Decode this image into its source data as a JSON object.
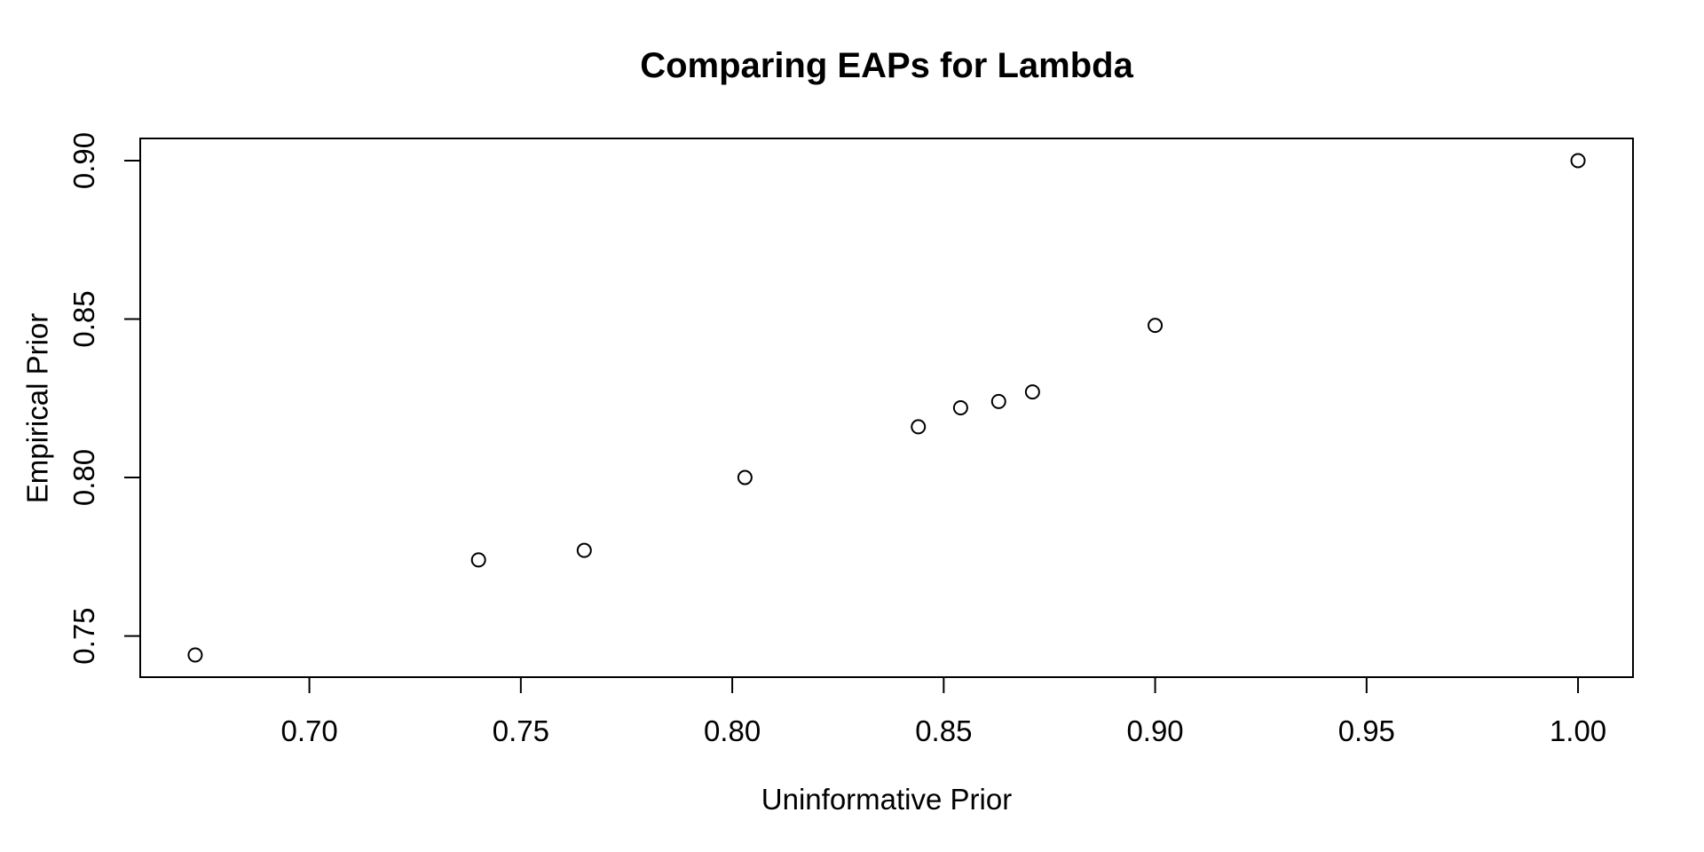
{
  "chart_data": {
    "type": "scatter",
    "title": "Comparing EAPs for Lambda",
    "xlabel": "Uninformative Prior",
    "ylabel": "Empirical Prior",
    "xlim": [
      0.66,
      1.013
    ],
    "ylim": [
      0.737,
      0.907
    ],
    "x_ticks": [
      {
        "value": 0.7,
        "label": "0.70"
      },
      {
        "value": 0.75,
        "label": "0.75"
      },
      {
        "value": 0.8,
        "label": "0.80"
      },
      {
        "value": 0.85,
        "label": "0.85"
      },
      {
        "value": 0.9,
        "label": "0.90"
      },
      {
        "value": 0.95,
        "label": "0.95"
      },
      {
        "value": 1.0,
        "label": "1.00"
      }
    ],
    "y_ticks": [
      {
        "value": 0.75,
        "label": "0.75"
      },
      {
        "value": 0.8,
        "label": "0.80"
      },
      {
        "value": 0.85,
        "label": "0.85"
      },
      {
        "value": 0.9,
        "label": "0.90"
      }
    ],
    "points": [
      {
        "x": 0.673,
        "y": 0.744
      },
      {
        "x": 0.74,
        "y": 0.774
      },
      {
        "x": 0.765,
        "y": 0.777
      },
      {
        "x": 0.803,
        "y": 0.8
      },
      {
        "x": 0.844,
        "y": 0.816
      },
      {
        "x": 0.854,
        "y": 0.822
      },
      {
        "x": 0.863,
        "y": 0.824
      },
      {
        "x": 0.871,
        "y": 0.827
      },
      {
        "x": 0.9,
        "y": 0.848
      },
      {
        "x": 1.0,
        "y": 0.9
      }
    ],
    "marker": "open-circle",
    "grid": false,
    "colors": {
      "background": "#ffffff",
      "foreground": "#000000"
    }
  }
}
